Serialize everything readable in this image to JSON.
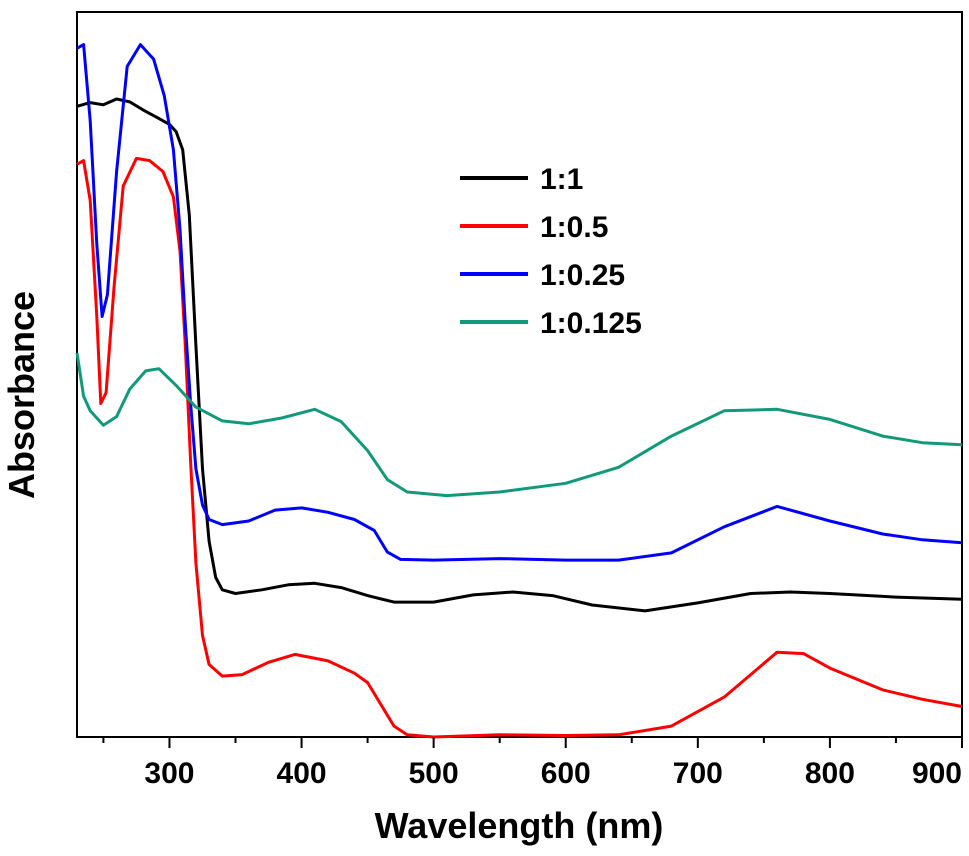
{
  "chart_data": {
    "type": "line",
    "title": "",
    "xlabel": "Wavelength (nm)",
    "ylabel": "Absorbance",
    "xlim": [
      230,
      900
    ],
    "ylim": [
      0,
      10
    ],
    "xticks": [
      300,
      400,
      500,
      600,
      700,
      800,
      900
    ],
    "y_tick_labels": false,
    "grid": false,
    "legend_position": "top-center",
    "series": [
      {
        "name": "1:1",
        "color": "#000000",
        "points": [
          [
            230,
            8.7
          ],
          [
            240,
            8.75
          ],
          [
            250,
            8.72
          ],
          [
            260,
            8.8
          ],
          [
            270,
            8.76
          ],
          [
            280,
            8.65
          ],
          [
            290,
            8.55
          ],
          [
            300,
            8.45
          ],
          [
            305,
            8.35
          ],
          [
            310,
            8.1
          ],
          [
            315,
            7.2
          ],
          [
            320,
            5.4
          ],
          [
            325,
            3.7
          ],
          [
            330,
            2.7
          ],
          [
            335,
            2.2
          ],
          [
            340,
            2.03
          ],
          [
            350,
            1.98
          ],
          [
            370,
            2.03
          ],
          [
            390,
            2.1
          ],
          [
            410,
            2.12
          ],
          [
            430,
            2.06
          ],
          [
            450,
            1.95
          ],
          [
            470,
            1.86
          ],
          [
            500,
            1.86
          ],
          [
            530,
            1.96
          ],
          [
            560,
            2.0
          ],
          [
            590,
            1.95
          ],
          [
            620,
            1.82
          ],
          [
            660,
            1.74
          ],
          [
            700,
            1.85
          ],
          [
            740,
            1.98
          ],
          [
            770,
            2.0
          ],
          [
            800,
            1.98
          ],
          [
            850,
            1.93
          ],
          [
            900,
            1.9
          ]
        ]
      },
      {
        "name": "1:0.5",
        "color": "#ff0000",
        "points": [
          [
            230,
            7.9
          ],
          [
            235,
            7.95
          ],
          [
            240,
            7.4
          ],
          [
            245,
            5.8
          ],
          [
            248,
            4.6
          ],
          [
            252,
            4.75
          ],
          [
            258,
            6.2
          ],
          [
            265,
            7.6
          ],
          [
            275,
            7.98
          ],
          [
            285,
            7.95
          ],
          [
            295,
            7.8
          ],
          [
            303,
            7.45
          ],
          [
            308,
            6.7
          ],
          [
            312,
            5.4
          ],
          [
            316,
            3.8
          ],
          [
            320,
            2.4
          ],
          [
            325,
            1.4
          ],
          [
            330,
            1.0
          ],
          [
            340,
            0.84
          ],
          [
            355,
            0.86
          ],
          [
            375,
            1.03
          ],
          [
            395,
            1.14
          ],
          [
            420,
            1.05
          ],
          [
            440,
            0.88
          ],
          [
            450,
            0.75
          ],
          [
            460,
            0.45
          ],
          [
            470,
            0.15
          ],
          [
            480,
            0.03
          ],
          [
            500,
            0.0
          ],
          [
            550,
            0.03
          ],
          [
            600,
            0.02
          ],
          [
            640,
            0.03
          ],
          [
            680,
            0.15
          ],
          [
            720,
            0.55
          ],
          [
            760,
            1.17
          ],
          [
            780,
            1.15
          ],
          [
            800,
            0.95
          ],
          [
            840,
            0.65
          ],
          [
            870,
            0.52
          ],
          [
            900,
            0.42
          ]
        ]
      },
      {
        "name": "1:0.25",
        "color": "#0000ff",
        "points": [
          [
            230,
            9.5
          ],
          [
            235,
            9.55
          ],
          [
            240,
            8.5
          ],
          [
            245,
            6.8
          ],
          [
            249,
            5.8
          ],
          [
            253,
            6.1
          ],
          [
            260,
            7.8
          ],
          [
            268,
            9.25
          ],
          [
            278,
            9.55
          ],
          [
            288,
            9.35
          ],
          [
            296,
            8.85
          ],
          [
            303,
            8.1
          ],
          [
            308,
            7.0
          ],
          [
            312,
            5.7
          ],
          [
            316,
            4.6
          ],
          [
            320,
            3.7
          ],
          [
            325,
            3.2
          ],
          [
            330,
            3.0
          ],
          [
            340,
            2.93
          ],
          [
            360,
            2.98
          ],
          [
            380,
            3.13
          ],
          [
            400,
            3.16
          ],
          [
            420,
            3.1
          ],
          [
            440,
            3.0
          ],
          [
            455,
            2.85
          ],
          [
            465,
            2.55
          ],
          [
            475,
            2.45
          ],
          [
            500,
            2.44
          ],
          [
            550,
            2.46
          ],
          [
            600,
            2.44
          ],
          [
            640,
            2.44
          ],
          [
            680,
            2.54
          ],
          [
            720,
            2.9
          ],
          [
            760,
            3.18
          ],
          [
            800,
            2.98
          ],
          [
            840,
            2.8
          ],
          [
            870,
            2.72
          ],
          [
            900,
            2.68
          ]
        ]
      },
      {
        "name": "1:0.125",
        "color": "#109a7a",
        "points": [
          [
            230,
            5.3
          ],
          [
            235,
            4.7
          ],
          [
            240,
            4.5
          ],
          [
            250,
            4.3
          ],
          [
            260,
            4.42
          ],
          [
            270,
            4.8
          ],
          [
            282,
            5.05
          ],
          [
            292,
            5.08
          ],
          [
            305,
            4.85
          ],
          [
            320,
            4.55
          ],
          [
            340,
            4.36
          ],
          [
            360,
            4.32
          ],
          [
            385,
            4.4
          ],
          [
            410,
            4.52
          ],
          [
            430,
            4.35
          ],
          [
            450,
            3.95
          ],
          [
            465,
            3.55
          ],
          [
            480,
            3.38
          ],
          [
            510,
            3.33
          ],
          [
            550,
            3.38
          ],
          [
            600,
            3.5
          ],
          [
            640,
            3.72
          ],
          [
            680,
            4.15
          ],
          [
            720,
            4.5
          ],
          [
            760,
            4.52
          ],
          [
            800,
            4.38
          ],
          [
            840,
            4.15
          ],
          [
            870,
            4.06
          ],
          [
            900,
            4.03
          ]
        ]
      }
    ]
  }
}
